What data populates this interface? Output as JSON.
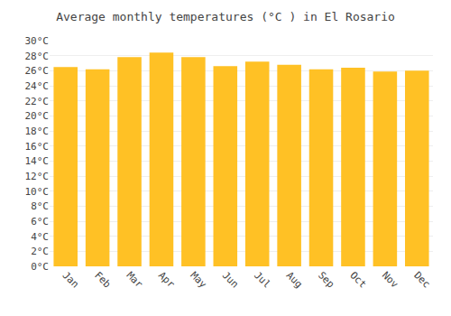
{
  "chart_data": {
    "type": "bar",
    "title": "Average monthly temperatures (°C ) in El Rosario",
    "categories": [
      "Jan",
      "Feb",
      "Mar",
      "Apr",
      "May",
      "Jun",
      "Jul",
      "Aug",
      "Sep",
      "Oct",
      "Nov",
      "Dec"
    ],
    "values": [
      26.5,
      26.2,
      27.8,
      28.4,
      27.8,
      26.6,
      27.2,
      26.8,
      26.2,
      26.4,
      25.9,
      26.0
    ],
    "color": "#FFC125",
    "ylim": [
      0,
      30
    ],
    "yticks": [
      {
        "value": 0,
        "label": "0°C"
      },
      {
        "value": 2,
        "label": "2°C"
      },
      {
        "value": 4,
        "label": "4°C"
      },
      {
        "value": 6,
        "label": "6°C"
      },
      {
        "value": 8,
        "label": "8°C"
      },
      {
        "value": 10,
        "label": "10°C"
      },
      {
        "value": 12,
        "label": "12°C"
      },
      {
        "value": 14,
        "label": "14°C"
      },
      {
        "value": 16,
        "label": "16°C"
      },
      {
        "value": 18,
        "label": "18°C"
      },
      {
        "value": 20,
        "label": "20°C"
      },
      {
        "value": 22,
        "label": "22°C"
      },
      {
        "value": 24,
        "label": "24°C"
      },
      {
        "value": 26,
        "label": "26°C"
      },
      {
        "value": 28,
        "label": "28°C"
      },
      {
        "value": 30,
        "label": "30°C"
      }
    ],
    "grid": true
  }
}
